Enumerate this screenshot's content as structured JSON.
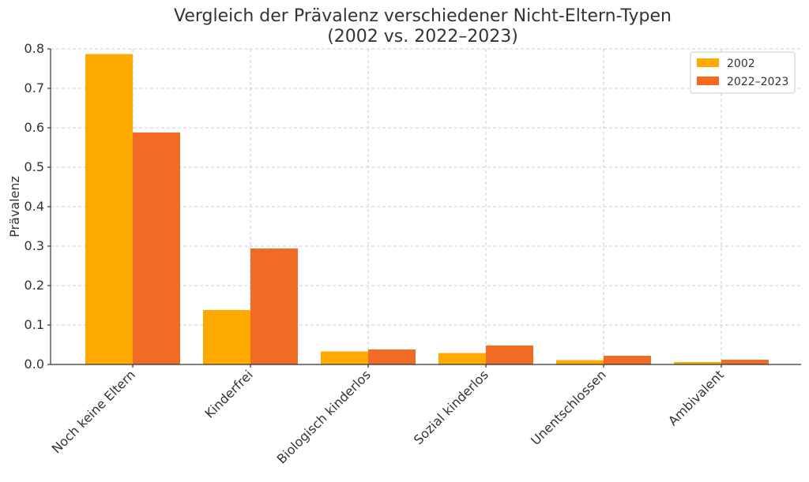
{
  "chart_data": {
    "type": "bar",
    "title": [
      "Vergleich der Prävalenz verschiedener Nicht-Eltern-Typen",
      "(2002 vs. 2022–2023)"
    ],
    "ylabel": "Prävalenz",
    "xlabel": "",
    "categories": [
      "Noch keine Eltern",
      "Kinderfrei",
      "Biologisch kinderlos",
      "Sozial kinderlos",
      "Unentschlossen",
      "Ambivalent"
    ],
    "series": [
      {
        "name": "2002",
        "color": "#FFAA00",
        "values": [
          0.787,
          0.138,
          0.033,
          0.029,
          0.011,
          0.006
        ]
      },
      {
        "name": "2022–2023",
        "color": "#F26B24",
        "values": [
          0.588,
          0.294,
          0.038,
          0.048,
          0.022,
          0.012
        ]
      }
    ],
    "ylim": [
      0,
      0.8
    ],
    "yticks": [
      "0.0",
      "0.1",
      "0.2",
      "0.3",
      "0.4",
      "0.5",
      "0.6",
      "0.7",
      "0.8"
    ],
    "grid": true,
    "legend_position": "top-right"
  }
}
